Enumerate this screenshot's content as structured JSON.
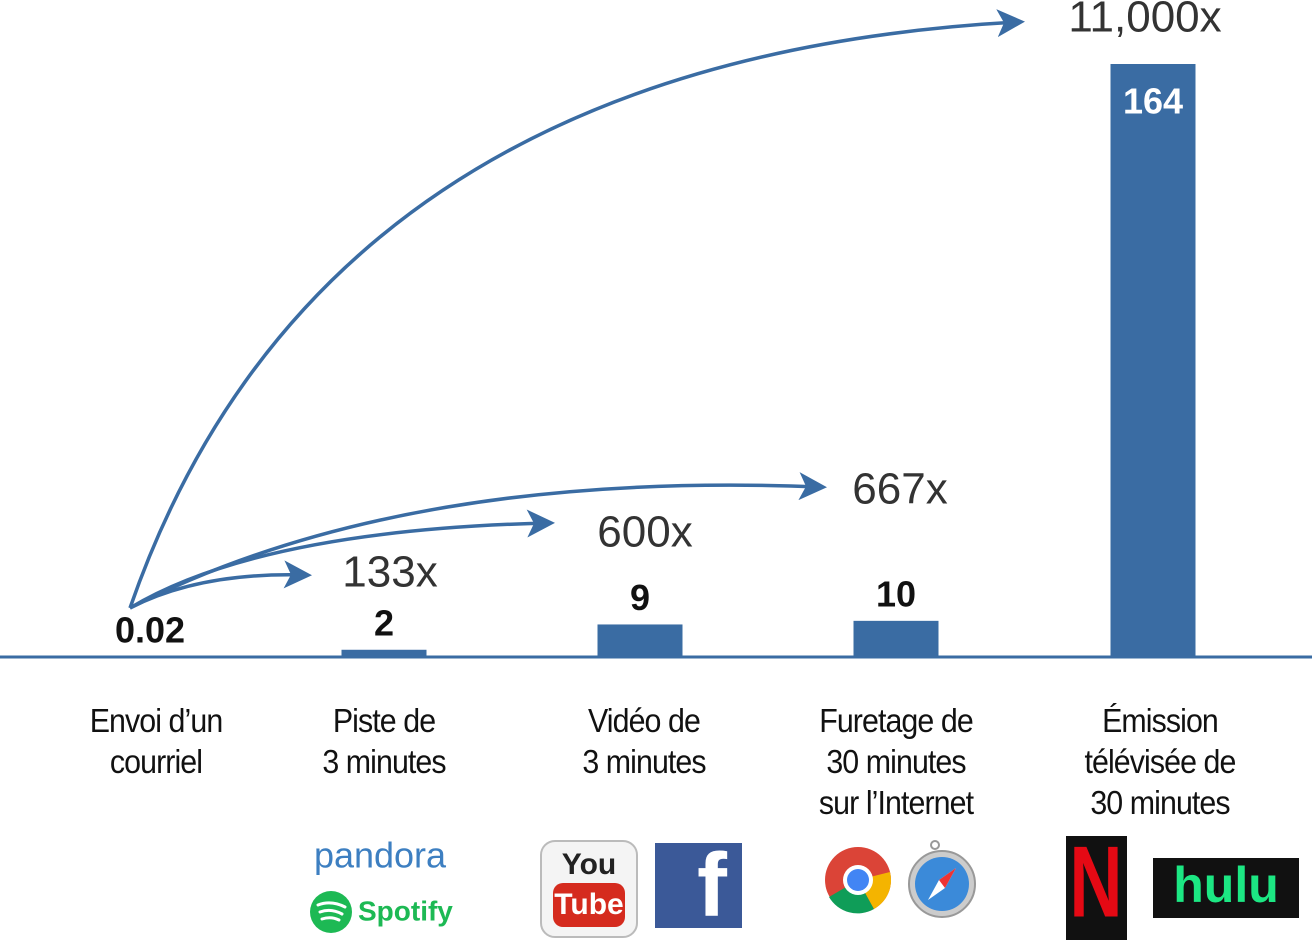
{
  "chart_data": {
    "type": "bar",
    "categories": [
      "Envoi d’un\ncourriel",
      "Piste de\n3 minutes",
      "Vidéo de\n3 minutes",
      "Furetage de\n30 minutes\nsur l’Internet",
      "Émission\ntélévisée de\n30 minutes"
    ],
    "values": [
      0.02,
      2,
      9,
      10,
      164
    ],
    "color": "#3a6ca3",
    "ylim": [
      0,
      164
    ],
    "annotations": [
      "133x",
      "600x",
      "667x",
      "11,000x"
    ],
    "logos": [
      [],
      [
        "pandora",
        "Spotify"
      ],
      [
        "You",
        "Tube",
        "f"
      ],
      [],
      [
        "N",
        "hulu"
      ]
    ]
  }
}
